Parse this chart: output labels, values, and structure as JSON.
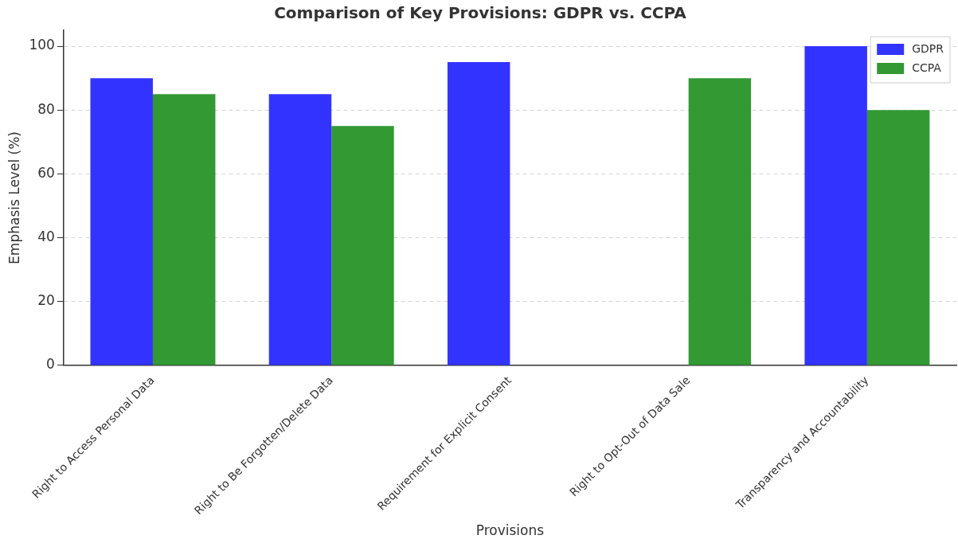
{
  "chart_data": {
    "type": "bar",
    "title": "Comparison of Key Provisions: GDPR vs. CCPA",
    "xlabel": "Provisions",
    "ylabel": "Emphasis Level (%)",
    "categories": [
      "Right to Access Personal Data",
      "Right to Be Forgotten/Delete Data",
      "Requirement for Explicit Consent",
      "Right to Opt-Out of Data Sale",
      "Transparency and Accountability"
    ],
    "series": [
      {
        "name": "GDPR",
        "color": "#3333ff",
        "values": [
          90,
          85,
          95,
          0,
          100
        ]
      },
      {
        "name": "CCPA",
        "color": "#339933",
        "values": [
          85,
          75,
          0,
          90,
          80
        ]
      }
    ],
    "ylim": [
      0,
      105
    ],
    "yticks": [
      0,
      20,
      40,
      60,
      80,
      100
    ],
    "grid": "y",
    "legend": "top right"
  }
}
